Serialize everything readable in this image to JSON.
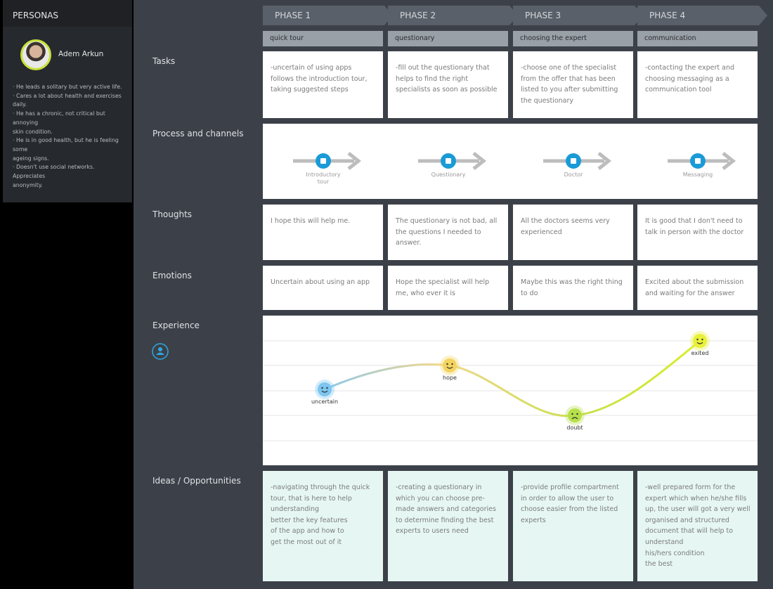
{
  "sidebar": {
    "title": "PERSONAS",
    "persona": {
      "name": "Adem Arkun",
      "bio": [
        "· He leads a solitary but very active life.",
        "· Cares a lot about health and exercises daily.",
        "· He has a chronic, not critical but annoying\nskin condition.",
        "· He is in good health, but he is feeling some\nageing signs.",
        "· Doesn't use social networks. Appreciates\nanonymity."
      ]
    }
  },
  "phases": [
    {
      "name": "PHASE 1",
      "step": "quick tour"
    },
    {
      "name": "PHASE 2",
      "step": "questionary"
    },
    {
      "name": "PHASE 3",
      "step": "choosing the expert"
    },
    {
      "name": "PHASE 4",
      "step": "communication"
    }
  ],
  "rows": {
    "tasks": {
      "label": "Tasks",
      "cells": [
        "-uncertain of using apps follows the introduction tour, taking suggested steps",
        "-fill out the questionary that helps to find the right specialists as soon as possible",
        "-choose one of the specialist from the offer that has been listed to you after submitting the questionary",
        "-contacting the expert and choosing messaging as a communication tool"
      ]
    },
    "process": {
      "label": "Process and channels",
      "channels": [
        "Introductory tour",
        "Questionary",
        "Doctor",
        "Messaging"
      ]
    },
    "thoughts": {
      "label": "Thoughts",
      "cells": [
        "I hope this will help me.",
        "The questionary is not bad, all the questions I needed to answer.",
        "All the doctors seems very experienced",
        "It is good that I don't need to talk in person with the doctor"
      ]
    },
    "emotions": {
      "label": "Emotions",
      "cells": [
        "Uncertain about using an app",
        "Hope the specialist will help me, who ever it is",
        "Maybe this was the right thing to do",
        "Excited about the submission and waiting for the answer"
      ]
    },
    "experience": {
      "label": "Experience",
      "points": [
        "uncertain",
        "hope",
        "doubt",
        "exited"
      ]
    },
    "ideas": {
      "label": "Ideas / Opportunities",
      "cells": [
        "-navigating through the quick tour, that is here to help understanding\nbetter the key features\nof the app and how to\nget the most out of it",
        "-creating a questionary in which you can choose pre-made answers and categories to determine finding the best experts to users need",
        "-provide profile compartment in order to allow the user to choose easier from the listed experts",
        "-well prepared form for the expert which when he/she fills up, the user will got a very well organised and structured document that will help to understand\nhis/hers condition\nthe best"
      ]
    }
  }
}
